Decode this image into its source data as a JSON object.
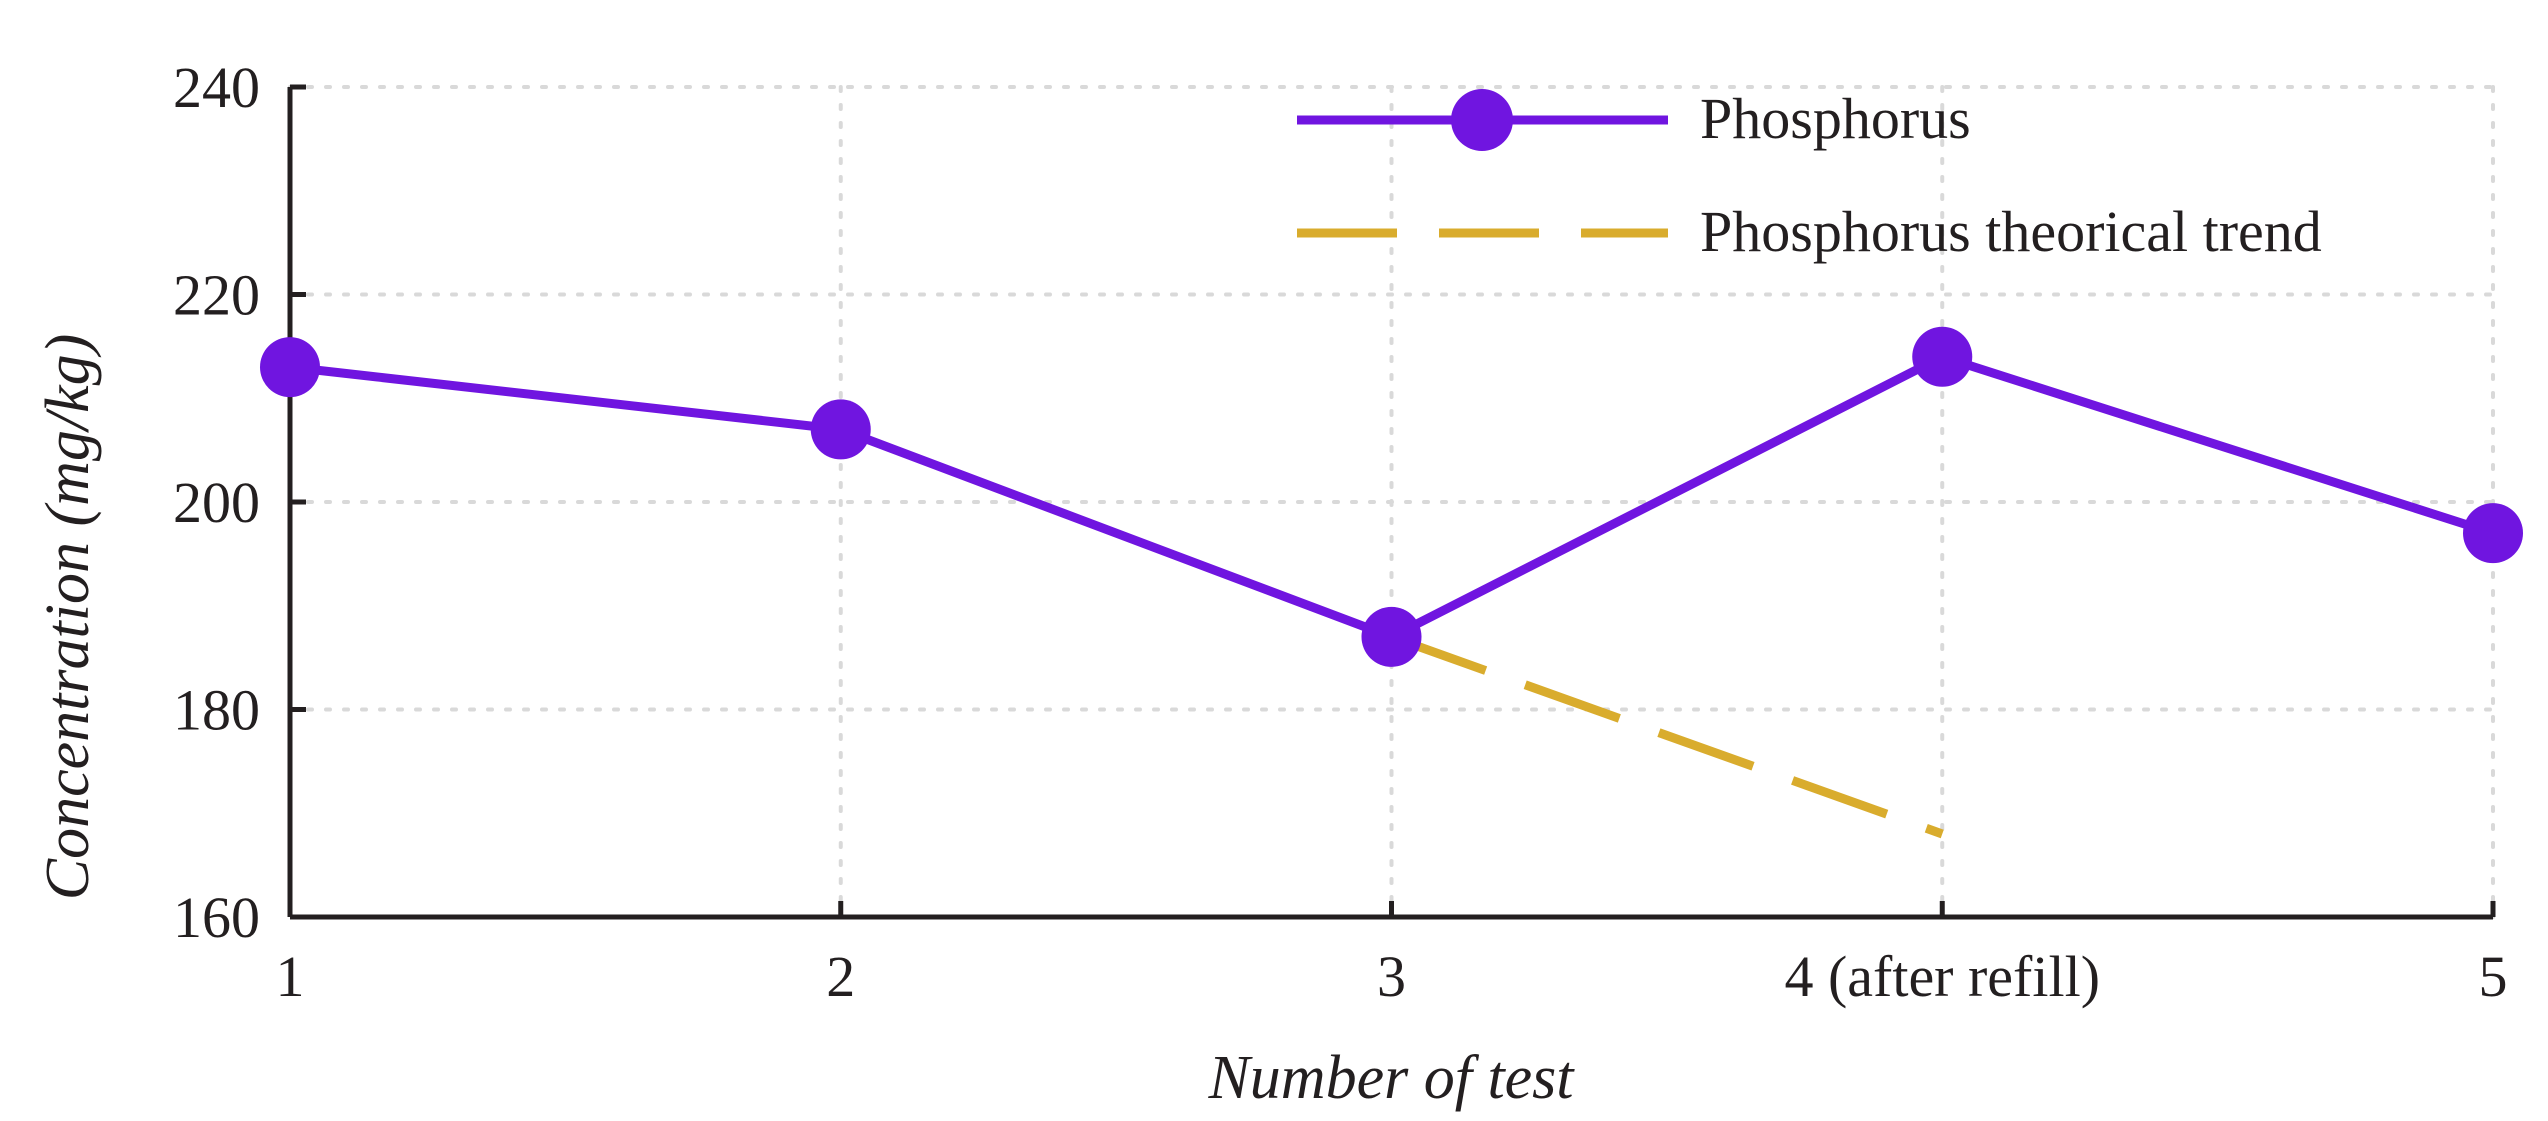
{
  "chart_data": {
    "type": "line",
    "title": "",
    "xlabel": "Number of test",
    "ylabel": "Concentration (mg/kg)",
    "categories": [
      "1",
      "2",
      "3",
      "4 (after refill)",
      "5"
    ],
    "x": [
      1,
      2,
      3,
      4,
      5
    ],
    "ylim": [
      160,
      240
    ],
    "yticks": [
      "160",
      "180",
      "200",
      "220",
      "240"
    ],
    "grid": true,
    "legend_position": "top-right",
    "series": [
      {
        "name": "Phosphorus",
        "x": [
          1,
          2,
          3,
          4,
          5
        ],
        "values": [
          213,
          207,
          187,
          214,
          197
        ],
        "color": "#7015e0",
        "style": "solid",
        "marker": "circle"
      },
      {
        "name": "Phosphorus theorical trend",
        "x": [
          3,
          4
        ],
        "values": [
          187,
          168
        ],
        "color": "#d9ac2d",
        "style": "dashed",
        "marker": "none"
      }
    ]
  }
}
